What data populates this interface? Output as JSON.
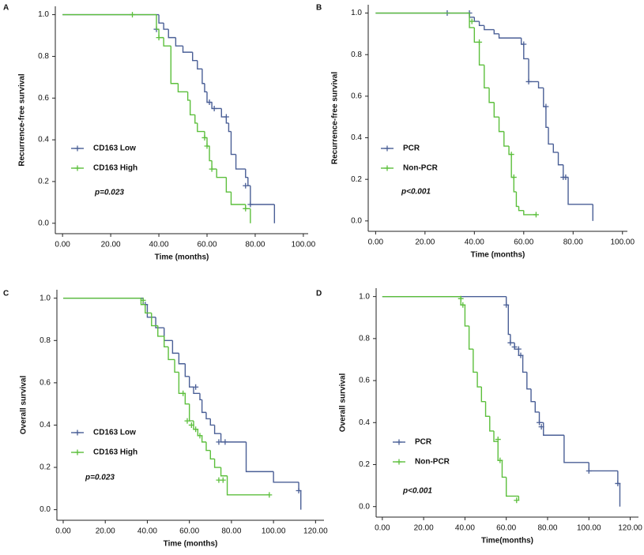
{
  "chart_data": [
    {
      "type": "km",
      "panel_label": "A",
      "y_label": "Recurrence-free survival",
      "x_label": "Time (months)",
      "annotation": "p=0.023",
      "xlim": [
        -3,
        102
      ],
      "ylim": [
        -0.05,
        1.04
      ],
      "xticks": [
        {
          "value": 0,
          "label": "0.00"
        },
        {
          "value": 20,
          "label": "20.00"
        },
        {
          "value": 40,
          "label": "40.00"
        },
        {
          "value": 60,
          "label": "60.00"
        },
        {
          "value": 80,
          "label": "80.00"
        },
        {
          "value": 100,
          "label": "100.00"
        }
      ],
      "yticks": [
        {
          "value": 0,
          "label": "0.0"
        },
        {
          "value": 0.2,
          "label": "0.2"
        },
        {
          "value": 0.4,
          "label": "0.4"
        },
        {
          "value": 0.6,
          "label": "0.6"
        },
        {
          "value": 0.8,
          "label": "0.8"
        },
        {
          "value": 1,
          "label": "1.0"
        }
      ],
      "series": [
        {
          "name": "CD163  Low",
          "color": "#4a5f96",
          "x": [
            0,
            40,
            42,
            44,
            47,
            50,
            54,
            56,
            58,
            59,
            60,
            62,
            66,
            68,
            69,
            70,
            72,
            76,
            77,
            78,
            88
          ],
          "values": [
            1,
            0.96,
            0.93,
            0.89,
            0.85,
            0.82,
            0.78,
            0.74,
            0.67,
            0.63,
            0.58,
            0.55,
            0.51,
            0.48,
            0.44,
            0.33,
            0.26,
            0.22,
            0.18,
            0.09,
            0
          ],
          "censored": {
            "x": [
              39,
              61,
              63,
              68,
              76,
              78
            ],
            "values": [
              0.93,
              0.58,
              0.55,
              0.51,
              0.18,
              0.09
            ]
          }
        },
        {
          "name": "CD163  High",
          "color": "#5cbf3c",
          "x": [
            0,
            39,
            40,
            42,
            45,
            48,
            52,
            53,
            55,
            56,
            59,
            60,
            61,
            62,
            64,
            68,
            70,
            76,
            78
          ],
          "values": [
            1,
            0.93,
            0.89,
            0.85,
            0.67,
            0.63,
            0.59,
            0.52,
            0.48,
            0.44,
            0.41,
            0.37,
            0.3,
            0.26,
            0.22,
            0.15,
            0.09,
            0.07,
            0
          ],
          "censored": {
            "x": [
              29,
              40,
              59,
              60,
              62,
              76
            ],
            "values": [
              1,
              0.89,
              0.41,
              0.37,
              0.26,
              0.07
            ]
          }
        }
      ]
    },
    {
      "type": "km",
      "panel_label": "B",
      "y_label": "Recurrence-free survival",
      "x_label": "Time (months)",
      "annotation": "p<0.001",
      "xlim": [
        -3,
        102
      ],
      "ylim": [
        -0.05,
        1.04
      ],
      "xticks": [
        {
          "value": 0,
          "label": "0.00"
        },
        {
          "value": 20,
          "label": "20.00"
        },
        {
          "value": 40,
          "label": "40.00"
        },
        {
          "value": 60,
          "label": "60.00"
        },
        {
          "value": 80,
          "label": "80.00"
        },
        {
          "value": 100,
          "label": "100.00"
        }
      ],
      "yticks": [
        {
          "value": 0,
          "label": "0.0"
        },
        {
          "value": 0.2,
          "label": "0.2"
        },
        {
          "value": 0.4,
          "label": "0.4"
        },
        {
          "value": 0.6,
          "label": "0.6"
        },
        {
          "value": 0.8,
          "label": "0.8"
        },
        {
          "value": 1,
          "label": "1.0"
        }
      ],
      "series": [
        {
          "name": "PCR",
          "color": "#4a5f96",
          "x": [
            0,
            38,
            40,
            42,
            44,
            48,
            50,
            59,
            60,
            62,
            66,
            68,
            69,
            70,
            72,
            74,
            76,
            78,
            88
          ],
          "values": [
            1,
            0.98,
            0.96,
            0.94,
            0.92,
            0.9,
            0.88,
            0.85,
            0.78,
            0.67,
            0.64,
            0.55,
            0.45,
            0.37,
            0.33,
            0.27,
            0.21,
            0.08,
            0
          ],
          "censored": {
            "x": [
              29,
              38,
              60,
              62,
              69,
              76,
              77
            ],
            "values": [
              1,
              1,
              0.85,
              0.67,
              0.55,
              0.21,
              0.21
            ]
          }
        },
        {
          "name": "Non-PCR",
          "color": "#5cbf3c",
          "x": [
            0,
            38,
            40,
            42,
            44,
            46,
            48,
            50,
            52,
            54,
            55,
            56,
            57,
            58,
            60,
            65
          ],
          "values": [
            1,
            0.93,
            0.86,
            0.75,
            0.64,
            0.57,
            0.5,
            0.43,
            0.36,
            0.32,
            0.21,
            0.14,
            0.07,
            0.05,
            0.03,
            0.03
          ],
          "censored": {
            "x": [
              39,
              42,
              55,
              56,
              65
            ],
            "values": [
              0.96,
              0.86,
              0.32,
              0.21,
              0.03
            ]
          }
        }
      ]
    },
    {
      "type": "km",
      "panel_label": "C",
      "y_label": "Overall survival",
      "x_label": "Time (months)",
      "annotation": "p=0.023",
      "xlim": [
        -3,
        124
      ],
      "ylim": [
        -0.05,
        1.04
      ],
      "xticks": [
        {
          "value": 0,
          "label": "0.00"
        },
        {
          "value": 20,
          "label": "20.00"
        },
        {
          "value": 40,
          "label": "40.00"
        },
        {
          "value": 60,
          "label": "60.00"
        },
        {
          "value": 80,
          "label": "80.00"
        },
        {
          "value": 100,
          "label": "100.00"
        },
        {
          "value": 120,
          "label": "120.00"
        }
      ],
      "yticks": [
        {
          "value": 0,
          "label": "0.0"
        },
        {
          "value": 0.2,
          "label": "0.2"
        },
        {
          "value": 0.4,
          "label": "0.4"
        },
        {
          "value": 0.6,
          "label": "0.6"
        },
        {
          "value": 0.8,
          "label": "0.8"
        },
        {
          "value": 1,
          "label": "1.0"
        }
      ],
      "series": [
        {
          "name": "CD163 Low",
          "color": "#4a5f96",
          "x": [
            0,
            38,
            40,
            44,
            48,
            52,
            55,
            58,
            60,
            62,
            65,
            66,
            68,
            70,
            72,
            75,
            87,
            100,
            112,
            113
          ],
          "values": [
            1,
            0.97,
            0.91,
            0.86,
            0.8,
            0.74,
            0.69,
            0.63,
            0.58,
            0.55,
            0.52,
            0.46,
            0.43,
            0.4,
            0.36,
            0.32,
            0.18,
            0.13,
            0.09,
            0
          ],
          "censored": {
            "x": [
              39,
              63,
              74,
              77,
              112
            ],
            "values": [
              0.97,
              0.58,
              0.32,
              0.32,
              0.09
            ]
          }
        },
        {
          "name": "CD163 High",
          "color": "#5cbf3c",
          "x": [
            0,
            37,
            39,
            42,
            45,
            48,
            50,
            53,
            55,
            58,
            60,
            62,
            64,
            66,
            68,
            70,
            72,
            75,
            78,
            98
          ],
          "values": [
            1,
            0.97,
            0.93,
            0.87,
            0.82,
            0.77,
            0.71,
            0.65,
            0.55,
            0.5,
            0.42,
            0.38,
            0.35,
            0.32,
            0.28,
            0.24,
            0.2,
            0.16,
            0.07,
            0.07
          ],
          "censored": {
            "x": [
              38,
              57,
              59,
              61,
              63,
              65,
              74,
              76,
              98
            ],
            "values": [
              0.99,
              0.55,
              0.42,
              0.4,
              0.38,
              0.35,
              0.14,
              0.14,
              0.07
            ]
          }
        }
      ]
    },
    {
      "type": "km",
      "panel_label": "D",
      "y_label": "Overall survival",
      "x_label": "Time(months)",
      "annotation": "p<0.001",
      "xlim": [
        -3,
        124
      ],
      "ylim": [
        -0.05,
        1.04
      ],
      "xticks": [
        {
          "value": 0,
          "label": "0.00"
        },
        {
          "value": 20,
          "label": "20.00"
        },
        {
          "value": 40,
          "label": "40.00"
        },
        {
          "value": 60,
          "label": "60.00"
        },
        {
          "value": 80,
          "label": "80.00"
        },
        {
          "value": 100,
          "label": "100.00"
        },
        {
          "value": 120,
          "label": "120.00"
        }
      ],
      "yticks": [
        {
          "value": 0,
          "label": "0.0"
        },
        {
          "value": 0.2,
          "label": "0.2"
        },
        {
          "value": 0.4,
          "label": "0.4"
        },
        {
          "value": 0.6,
          "label": "0.6"
        },
        {
          "value": 0.8,
          "label": "0.8"
        },
        {
          "value": 1,
          "label": "1.0"
        }
      ],
      "series": [
        {
          "name": "PCR",
          "color": "#4a5f96",
          "x": [
            0,
            60,
            61,
            62,
            64,
            66,
            68,
            70,
            72,
            74,
            76,
            78,
            88,
            100,
            114,
            115
          ],
          "values": [
            1,
            0.96,
            0.82,
            0.78,
            0.75,
            0.72,
            0.64,
            0.56,
            0.5,
            0.45,
            0.4,
            0.34,
            0.21,
            0.17,
            0.11,
            0
          ],
          "censored": {
            "x": [
              60,
              62,
              64,
              66,
              67,
              76,
              77,
              100,
              114
            ],
            "values": [
              0.96,
              0.78,
              0.76,
              0.75,
              0.72,
              0.4,
              0.38,
              0.17,
              0.11
            ]
          }
        },
        {
          "name": "Non-PCR",
          "color": "#5cbf3c",
          "x": [
            0,
            38,
            40,
            42,
            44,
            46,
            48,
            50,
            52,
            54,
            56,
            58,
            60,
            66
          ],
          "values": [
            1,
            0.96,
            0.86,
            0.75,
            0.64,
            0.57,
            0.5,
            0.43,
            0.36,
            0.31,
            0.22,
            0.14,
            0.05,
            0.03
          ],
          "censored": {
            "x": [
              38,
              39,
              56,
              57,
              65
            ],
            "values": [
              0.99,
              0.96,
              0.32,
              0.22,
              0.03
            ]
          }
        }
      ]
    }
  ]
}
